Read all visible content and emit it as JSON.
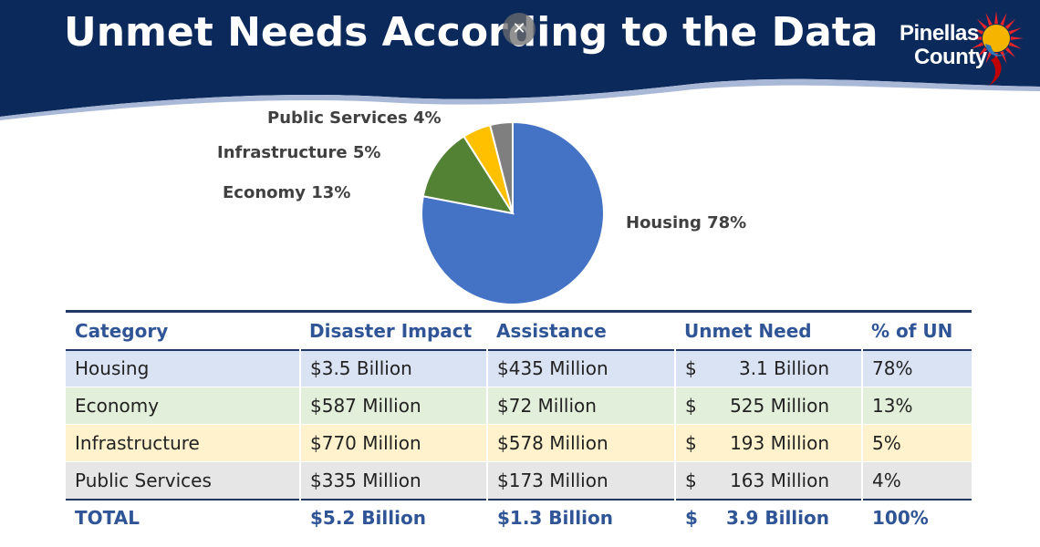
{
  "header": {
    "title": "Unmet Needs According to the Data",
    "logo_line1": "Pinellas",
    "logo_line2": "County",
    "close_symbol": "✕"
  },
  "colors": {
    "header_navy": "#0b2a5b",
    "housing": "#4472c4",
    "economy": "#548235",
    "infrastructure": "#ffc000",
    "public_services": "#7f7f7f",
    "table_header_text": "#2f5597"
  },
  "chart_data": {
    "type": "pie",
    "slices": [
      {
        "label": "Housing",
        "value": 78,
        "display": "Housing  78%",
        "color": "#4472c4"
      },
      {
        "label": "Economy",
        "value": 13,
        "display": "Economy 13%",
        "color": "#548235"
      },
      {
        "label": "Infrastructure",
        "value": 5,
        "display": "Infrastructure 5%",
        "color": "#ffc000"
      },
      {
        "label": "Public Services",
        "value": 4,
        "display": "Public Services 4%",
        "color": "#7f7f7f"
      }
    ]
  },
  "table": {
    "headers": [
      "Category",
      "Disaster Impact",
      "Assistance",
      "Unmet Need",
      "% of UN"
    ],
    "rows": [
      {
        "category": "Housing",
        "impact": "$3.5 Billion",
        "assistance": "$435 Million",
        "un_currency": "$",
        "un_amount": "3.1 Billion",
        "pct": "78%",
        "bg": "#dae3f3"
      },
      {
        "category": "Economy",
        "impact": "$587 Million",
        "assistance": "$72 Million",
        "un_currency": "$",
        "un_amount": "525 Million",
        "pct": "13%",
        "bg": "#e2efda"
      },
      {
        "category": "Infrastructure",
        "impact": "$770 Million",
        "assistance": "$578 Million",
        "un_currency": "$",
        "un_amount": "193 Million",
        "pct": "5%",
        "bg": "#fff2cc"
      },
      {
        "category": "Public Services",
        "impact": "$335 Million",
        "assistance": "$173 Million",
        "un_currency": "$",
        "un_amount": "163 Million",
        "pct": "4%",
        "bg": "#e7e6e6"
      }
    ],
    "total": {
      "category": "TOTAL",
      "impact": "$5.2 Billion",
      "assistance": "$1.3 Billion",
      "un_currency": "$",
      "un_amount": "3.9 Billion",
      "pct": "100%"
    }
  }
}
